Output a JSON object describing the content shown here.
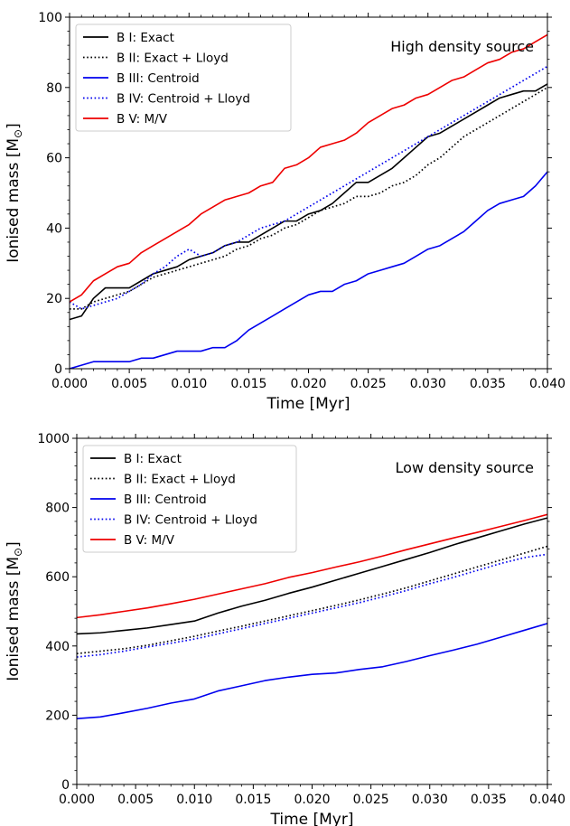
{
  "chart_data": [
    {
      "type": "line",
      "annotation": "High density source",
      "xlabel": "Time [Myr]",
      "ylabel": "Ionised mass [M",
      "ylabel_sub": "⊙",
      "ylabel_close": "]",
      "xlim": [
        0,
        0.04
      ],
      "ylim": [
        0,
        100
      ],
      "xticks": [
        0.0,
        0.005,
        0.01,
        0.015,
        0.02,
        0.025,
        0.03,
        0.035,
        0.04
      ],
      "xtick_labels": [
        "0.000",
        "0.005",
        "0.010",
        "0.015",
        "0.020",
        "0.025",
        "0.030",
        "0.035",
        "0.040"
      ],
      "yticks": [
        0,
        20,
        40,
        60,
        80,
        100
      ],
      "ytick_labels": [
        "0",
        "20",
        "40",
        "60",
        "80",
        "100"
      ],
      "legend_position": "top-left",
      "series": [
        {
          "name": "B I: Exact",
          "color": "#000000",
          "dash": "solid",
          "x": [
            0.0,
            0.001,
            0.002,
            0.003,
            0.004,
            0.005,
            0.006,
            0.007,
            0.008,
            0.009,
            0.01,
            0.011,
            0.012,
            0.013,
            0.014,
            0.015,
            0.016,
            0.017,
            0.018,
            0.019,
            0.02,
            0.021,
            0.022,
            0.023,
            0.024,
            0.025,
            0.026,
            0.027,
            0.028,
            0.029,
            0.03,
            0.031,
            0.032,
            0.033,
            0.034,
            0.035,
            0.036,
            0.037,
            0.038,
            0.039,
            0.04
          ],
          "y": [
            14,
            15,
            20,
            23,
            23,
            23,
            25,
            27,
            28,
            29,
            31,
            32,
            33,
            35,
            36,
            36,
            38,
            40,
            42,
            42,
            44,
            45,
            47,
            50,
            53,
            53,
            55,
            57,
            60,
            63,
            66,
            67,
            69,
            71,
            73,
            75,
            77,
            78,
            79,
            79,
            81
          ]
        },
        {
          "name": "B II: Exact + Lloyd",
          "color": "#000000",
          "dash": "dotted",
          "x": [
            0.0,
            0.001,
            0.002,
            0.003,
            0.004,
            0.005,
            0.006,
            0.007,
            0.008,
            0.009,
            0.01,
            0.011,
            0.012,
            0.013,
            0.014,
            0.015,
            0.016,
            0.017,
            0.018,
            0.019,
            0.02,
            0.021,
            0.022,
            0.023,
            0.024,
            0.025,
            0.026,
            0.027,
            0.028,
            0.029,
            0.03,
            0.031,
            0.032,
            0.033,
            0.034,
            0.035,
            0.036,
            0.037,
            0.038,
            0.039,
            0.04
          ],
          "y": [
            17,
            17,
            19,
            20,
            21,
            22,
            24,
            26,
            27,
            28,
            29,
            30,
            31,
            32,
            34,
            35,
            37,
            38,
            40,
            41,
            43,
            45,
            46,
            47,
            49,
            49,
            50,
            52,
            53,
            55,
            58,
            60,
            63,
            66,
            68,
            70,
            72,
            74,
            76,
            78,
            80
          ]
        },
        {
          "name": "B III: Centroid",
          "color": "#0000ee",
          "dash": "solid",
          "x": [
            0.0,
            0.001,
            0.002,
            0.003,
            0.004,
            0.005,
            0.006,
            0.007,
            0.008,
            0.009,
            0.01,
            0.011,
            0.012,
            0.013,
            0.014,
            0.015,
            0.016,
            0.017,
            0.018,
            0.019,
            0.02,
            0.021,
            0.022,
            0.023,
            0.024,
            0.025,
            0.026,
            0.027,
            0.028,
            0.029,
            0.03,
            0.031,
            0.032,
            0.033,
            0.034,
            0.035,
            0.036,
            0.037,
            0.038,
            0.039,
            0.04
          ],
          "y": [
            0,
            1,
            2,
            2,
            2,
            2,
            3,
            3,
            4,
            5,
            5,
            5,
            6,
            6,
            8,
            11,
            13,
            15,
            17,
            19,
            21,
            22,
            22,
            24,
            25,
            27,
            28,
            29,
            30,
            32,
            34,
            35,
            37,
            39,
            42,
            45,
            47,
            48,
            49,
            52,
            56
          ]
        },
        {
          "name": "B IV: Centroid + Lloyd",
          "color": "#0000ee",
          "dash": "dotted",
          "x": [
            0.0,
            0.001,
            0.002,
            0.003,
            0.004,
            0.005,
            0.006,
            0.007,
            0.008,
            0.009,
            0.01,
            0.011,
            0.012,
            0.013,
            0.014,
            0.015,
            0.016,
            0.017,
            0.018,
            0.019,
            0.02,
            0.021,
            0.022,
            0.023,
            0.024,
            0.025,
            0.026,
            0.027,
            0.028,
            0.029,
            0.03,
            0.031,
            0.032,
            0.033,
            0.034,
            0.035,
            0.036,
            0.037,
            0.038,
            0.039,
            0.04
          ],
          "y": [
            19,
            17,
            18,
            19,
            20,
            22,
            24,
            27,
            29,
            32,
            34,
            32,
            33,
            35,
            36,
            38,
            40,
            41,
            42,
            44,
            46,
            48,
            50,
            52,
            54,
            56,
            58,
            60,
            62,
            64,
            66,
            68,
            70,
            72,
            74,
            76,
            78,
            80,
            82,
            84,
            86
          ]
        },
        {
          "name": "B V: M/V",
          "color": "#ee0000",
          "dash": "solid",
          "x": [
            0.0,
            0.001,
            0.002,
            0.003,
            0.004,
            0.005,
            0.006,
            0.007,
            0.008,
            0.009,
            0.01,
            0.011,
            0.012,
            0.013,
            0.014,
            0.015,
            0.016,
            0.017,
            0.018,
            0.019,
            0.02,
            0.021,
            0.022,
            0.023,
            0.024,
            0.025,
            0.026,
            0.027,
            0.028,
            0.029,
            0.03,
            0.031,
            0.032,
            0.033,
            0.034,
            0.035,
            0.036,
            0.037,
            0.038,
            0.039,
            0.04
          ],
          "y": [
            19,
            21,
            25,
            27,
            29,
            30,
            33,
            35,
            37,
            39,
            41,
            44,
            46,
            48,
            49,
            50,
            52,
            53,
            57,
            58,
            60,
            63,
            64,
            65,
            67,
            70,
            72,
            74,
            75,
            77,
            78,
            80,
            82,
            83,
            85,
            87,
            88,
            90,
            91,
            93,
            95
          ]
        }
      ]
    },
    {
      "type": "line",
      "annotation": "Low density source",
      "xlabel": "Time [Myr]",
      "ylabel": "Ionised mass [M",
      "ylabel_sub": "⊙",
      "ylabel_close": "]",
      "xlim": [
        0,
        0.04
      ],
      "ylim": [
        0,
        1000
      ],
      "xticks": [
        0.0,
        0.005,
        0.01,
        0.015,
        0.02,
        0.025,
        0.03,
        0.035,
        0.04
      ],
      "xtick_labels": [
        "0.000",
        "0.005",
        "0.010",
        "0.015",
        "0.020",
        "0.025",
        "0.030",
        "0.035",
        "0.040"
      ],
      "yticks": [
        0,
        200,
        400,
        600,
        800,
        1000
      ],
      "ytick_labels": [
        "0",
        "200",
        "400",
        "600",
        "800",
        "1000"
      ],
      "legend_position": "top-left",
      "series": [
        {
          "name": "B I: Exact",
          "color": "#000000",
          "dash": "solid",
          "x": [
            0.0,
            0.002,
            0.004,
            0.006,
            0.008,
            0.01,
            0.012,
            0.014,
            0.016,
            0.018,
            0.02,
            0.022,
            0.024,
            0.026,
            0.028,
            0.03,
            0.032,
            0.034,
            0.036,
            0.038,
            0.04
          ],
          "y": [
            435,
            438,
            445,
            452,
            462,
            472,
            495,
            515,
            532,
            552,
            570,
            590,
            610,
            630,
            650,
            670,
            692,
            712,
            732,
            752,
            770
          ]
        },
        {
          "name": "B II: Exact + Lloyd",
          "color": "#000000",
          "dash": "dotted",
          "x": [
            0.0,
            0.002,
            0.004,
            0.006,
            0.008,
            0.01,
            0.012,
            0.014,
            0.016,
            0.018,
            0.02,
            0.022,
            0.024,
            0.026,
            0.028,
            0.03,
            0.032,
            0.034,
            0.036,
            0.038,
            0.04
          ],
          "y": [
            378,
            385,
            392,
            402,
            415,
            428,
            443,
            457,
            472,
            487,
            502,
            517,
            533,
            550,
            568,
            588,
            608,
            628,
            648,
            668,
            688
          ]
        },
        {
          "name": "B III: Centroid",
          "color": "#0000ee",
          "dash": "solid",
          "x": [
            0.0,
            0.002,
            0.004,
            0.006,
            0.008,
            0.01,
            0.012,
            0.014,
            0.016,
            0.018,
            0.02,
            0.022,
            0.024,
            0.026,
            0.028,
            0.03,
            0.032,
            0.034,
            0.036,
            0.038,
            0.04
          ],
          "y": [
            190,
            195,
            207,
            220,
            235,
            247,
            270,
            285,
            300,
            310,
            318,
            322,
            332,
            340,
            355,
            372,
            388,
            405,
            425,
            445,
            465
          ]
        },
        {
          "name": "B IV: Centroid + Lloyd",
          "color": "#0000ee",
          "dash": "dotted",
          "x": [
            0.0,
            0.002,
            0.004,
            0.006,
            0.008,
            0.01,
            0.012,
            0.014,
            0.016,
            0.018,
            0.02,
            0.022,
            0.024,
            0.026,
            0.028,
            0.03,
            0.032,
            0.034,
            0.036,
            0.038,
            0.04
          ],
          "y": [
            368,
            375,
            385,
            397,
            408,
            420,
            435,
            450,
            465,
            480,
            495,
            510,
            525,
            542,
            560,
            580,
            598,
            618,
            638,
            655,
            665
          ]
        },
        {
          "name": "B V: M/V",
          "color": "#ee0000",
          "dash": "solid",
          "x": [
            0.0,
            0.002,
            0.004,
            0.006,
            0.008,
            0.01,
            0.012,
            0.014,
            0.016,
            0.018,
            0.02,
            0.022,
            0.024,
            0.026,
            0.028,
            0.03,
            0.032,
            0.034,
            0.036,
            0.038,
            0.04
          ],
          "y": [
            482,
            490,
            500,
            510,
            522,
            535,
            550,
            565,
            580,
            598,
            612,
            628,
            643,
            660,
            678,
            695,
            712,
            728,
            745,
            762,
            780
          ]
        }
      ]
    }
  ]
}
